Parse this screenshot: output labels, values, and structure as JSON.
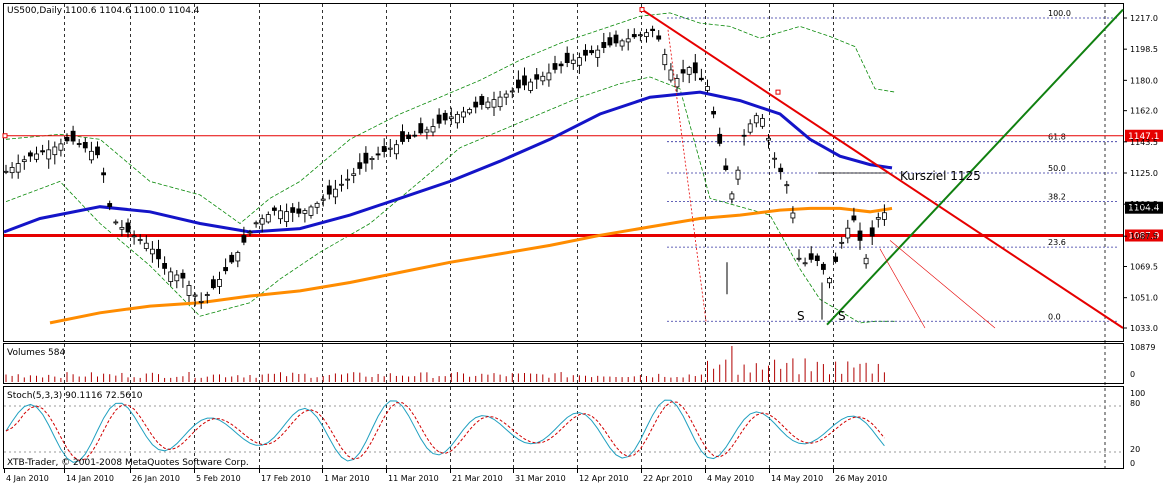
{
  "header": {
    "symbol_line": "US500,Daily  1100.6 1104.6 1100.0 1104.4",
    "volume_label": "Volumes 584",
    "stoch_label": "Stoch(5,3,3) 90.1116 72.5610",
    "copyright": "XTB-Trader, © 2001-2008 MetaQuotes Software Corp."
  },
  "chart_data": {
    "type": "candlestick",
    "price_ticks": [
      "1217.0",
      "1198.5",
      "1180.0",
      "1162.0",
      "1143.5",
      "1125.0",
      "1106.5",
      "1087.5",
      "1069.5",
      "1051.0",
      "1033.0"
    ],
    "volume_ticks": [
      "10879",
      "0"
    ],
    "stoch_ticks": [
      "100",
      "80",
      "20",
      "0"
    ],
    "date_ticks": [
      "4 Jan 2010",
      "14 Jan 2010",
      "26 Jan 2010",
      "5 Feb 2010",
      "17 Feb 2010",
      "1 Mar 2010",
      "11 Mar 2010",
      "21 Mar 2010",
      "31 Mar 2010",
      "12 Apr 2010",
      "22 Apr 2010",
      "4 May 2010",
      "14 May 2010",
      "26 May 2010"
    ],
    "price_tags": [
      {
        "label": "1147.1",
        "value": 1147.1,
        "color": "#e60000"
      },
      {
        "label": "1104.4",
        "value": 1104.4,
        "color": "#000000"
      },
      {
        "label": "1087.9",
        "value": 1087.9,
        "color": "#e60000"
      }
    ],
    "fib_levels": [
      {
        "label": "100.0",
        "value": 1217.0
      },
      {
        "label": "61.8",
        "value": 1143.6
      },
      {
        "label": "50.0",
        "value": 1125.0
      },
      {
        "label": "38.2",
        "value": 1108.0
      },
      {
        "label": "23.6",
        "value": 1081.0
      },
      {
        "label": "0.0",
        "value": 1037.0
      }
    ],
    "annotations": [
      {
        "label": "Kursziel 1125"
      },
      {
        "label": "S"
      },
      {
        "label": "S"
      }
    ],
    "colors": {
      "ma_short": "#1414c8",
      "ma_long": "#ff8c00",
      "trend_red": "#e60000",
      "trend_green": "#108010",
      "bollinger": "#0a8a0a",
      "volume": "#b00000",
      "stoch_main": "#20a0c0",
      "stoch_signal": "#d00000"
    }
  }
}
